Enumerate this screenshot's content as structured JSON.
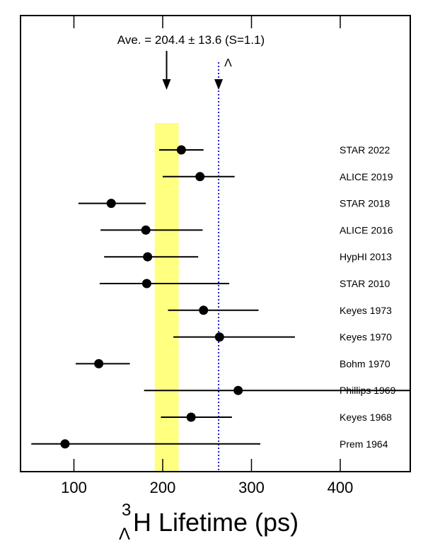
{
  "chart_data": {
    "type": "scatter",
    "title": "",
    "xlabel": {
      "superscript": "3",
      "subscript": "Λ",
      "text": "H Lifetime (ps)"
    },
    "xlim": [
      50,
      475
    ],
    "xticks": [
      100,
      200,
      300,
      400
    ],
    "grid": false,
    "average": {
      "label": "Ave. = 204.4 ± 13.6 (S=1.1)",
      "value": 204.4,
      "error": 13.6,
      "band": [
        191,
        218
      ],
      "band_color": "#ffff80"
    },
    "reference_line": {
      "label": "Λ",
      "value": 263,
      "color": "#1a1ad0"
    },
    "points": [
      {
        "label": "STAR 2022",
        "value": 221,
        "low": 196,
        "high": 246
      },
      {
        "label": "ALICE 2019",
        "value": 242,
        "low": 200,
        "high": 281
      },
      {
        "label": "STAR 2018",
        "value": 142,
        "low": 105,
        "high": 181
      },
      {
        "label": "ALICE 2016",
        "value": 181,
        "low": 130,
        "high": 245
      },
      {
        "label": "HypHI 2013",
        "value": 183,
        "low": 134,
        "high": 240
      },
      {
        "label": "STAR 2010",
        "value": 182,
        "low": 129,
        "high": 275
      },
      {
        "label": "Keyes 1973",
        "value": 246,
        "low": 206,
        "high": 308
      },
      {
        "label": "Keyes 1970",
        "value": 264,
        "low": 212,
        "high": 349
      },
      {
        "label": "Bohm 1970",
        "value": 128,
        "low": 102,
        "high": 163
      },
      {
        "label": "Phillips 1969",
        "value": 285,
        "low": 179,
        "high": 480
      },
      {
        "label": "Keyes 1968",
        "value": 232,
        "low": 198,
        "high": 278
      },
      {
        "label": "Prem 1964",
        "value": 90,
        "low": 52,
        "high": 310
      }
    ],
    "colors": {
      "marker": "#000000",
      "axis": "#000000"
    }
  }
}
